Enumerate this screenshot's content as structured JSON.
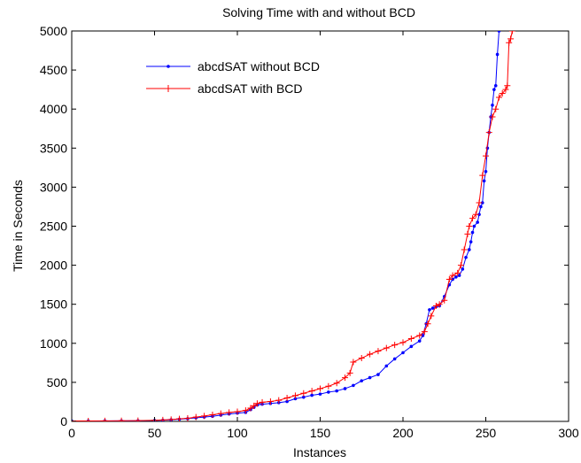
{
  "chart_data": {
    "type": "line",
    "title": "Solving Time with and without BCD",
    "xlabel": "Instances",
    "ylabel": "Time in Seconds",
    "xlim": [
      0,
      300
    ],
    "ylim": [
      0,
      5000
    ],
    "xticks": [
      0,
      50,
      100,
      150,
      200,
      250,
      300
    ],
    "yticks": [
      0,
      500,
      1000,
      1500,
      2000,
      2500,
      3000,
      3500,
      4000,
      4500,
      5000
    ],
    "grid": false,
    "legend_position": "top-left",
    "series": [
      {
        "name": "abcdSAT without BCD",
        "color": "#0000ff",
        "marker": "dot",
        "points": [
          [
            0,
            5
          ],
          [
            10,
            5
          ],
          [
            20,
            6
          ],
          [
            30,
            7
          ],
          [
            40,
            8
          ],
          [
            50,
            12
          ],
          [
            55,
            15
          ],
          [
            60,
            20
          ],
          [
            65,
            28
          ],
          [
            70,
            35
          ],
          [
            75,
            45
          ],
          [
            80,
            55
          ],
          [
            85,
            65
          ],
          [
            90,
            80
          ],
          [
            95,
            95
          ],
          [
            100,
            105
          ],
          [
            105,
            115
          ],
          [
            108,
            150
          ],
          [
            110,
            180
          ],
          [
            112,
            210
          ],
          [
            115,
            220
          ],
          [
            120,
            230
          ],
          [
            125,
            240
          ],
          [
            130,
            255
          ],
          [
            135,
            290
          ],
          [
            140,
            310
          ],
          [
            145,
            335
          ],
          [
            150,
            350
          ],
          [
            155,
            375
          ],
          [
            160,
            390
          ],
          [
            165,
            420
          ],
          [
            170,
            460
          ],
          [
            175,
            520
          ],
          [
            180,
            560
          ],
          [
            185,
            600
          ],
          [
            190,
            710
          ],
          [
            195,
            800
          ],
          [
            200,
            880
          ],
          [
            205,
            960
          ],
          [
            210,
            1030
          ],
          [
            212,
            1100
          ],
          [
            214,
            1250
          ],
          [
            216,
            1430
          ],
          [
            218,
            1450
          ],
          [
            220,
            1470
          ],
          [
            222,
            1480
          ],
          [
            225,
            1600
          ],
          [
            228,
            1750
          ],
          [
            230,
            1820
          ],
          [
            232,
            1850
          ],
          [
            234,
            1870
          ],
          [
            236,
            1950
          ],
          [
            238,
            2100
          ],
          [
            240,
            2200
          ],
          [
            241,
            2300
          ],
          [
            242,
            2420
          ],
          [
            243,
            2500
          ],
          [
            245,
            2550
          ],
          [
            246,
            2650
          ],
          [
            247,
            2750
          ],
          [
            248,
            2800
          ],
          [
            249,
            3080
          ],
          [
            250,
            3200
          ],
          [
            251,
            3500
          ],
          [
            252,
            3700
          ],
          [
            253,
            3900
          ],
          [
            254,
            4050
          ],
          [
            255,
            4250
          ],
          [
            256,
            4300
          ],
          [
            257,
            4700
          ],
          [
            258,
            5000
          ]
        ]
      },
      {
        "name": "abcdSAT with BCD",
        "color": "#ff0000",
        "marker": "plus",
        "points": [
          [
            0,
            5
          ],
          [
            10,
            6
          ],
          [
            20,
            7
          ],
          [
            30,
            8
          ],
          [
            40,
            10
          ],
          [
            50,
            14
          ],
          [
            55,
            18
          ],
          [
            60,
            24
          ],
          [
            65,
            32
          ],
          [
            70,
            40
          ],
          [
            75,
            55
          ],
          [
            80,
            70
          ],
          [
            85,
            85
          ],
          [
            90,
            100
          ],
          [
            95,
            115
          ],
          [
            100,
            125
          ],
          [
            105,
            140
          ],
          [
            108,
            170
          ],
          [
            110,
            200
          ],
          [
            112,
            230
          ],
          [
            115,
            245
          ],
          [
            120,
            255
          ],
          [
            125,
            270
          ],
          [
            130,
            300
          ],
          [
            135,
            330
          ],
          [
            140,
            360
          ],
          [
            145,
            390
          ],
          [
            150,
            420
          ],
          [
            155,
            450
          ],
          [
            160,
            490
          ],
          [
            165,
            560
          ],
          [
            168,
            620
          ],
          [
            170,
            760
          ],
          [
            175,
            810
          ],
          [
            180,
            860
          ],
          [
            185,
            900
          ],
          [
            190,
            940
          ],
          [
            195,
            980
          ],
          [
            200,
            1010
          ],
          [
            205,
            1060
          ],
          [
            210,
            1100
          ],
          [
            213,
            1150
          ],
          [
            215,
            1250
          ],
          [
            217,
            1350
          ],
          [
            220,
            1480
          ],
          [
            222,
            1500
          ],
          [
            225,
            1550
          ],
          [
            228,
            1820
          ],
          [
            230,
            1870
          ],
          [
            233,
            1900
          ],
          [
            235,
            2000
          ],
          [
            237,
            2200
          ],
          [
            239,
            2400
          ],
          [
            240,
            2500
          ],
          [
            242,
            2600
          ],
          [
            244,
            2650
          ],
          [
            246,
            2800
          ],
          [
            248,
            3150
          ],
          [
            250,
            3400
          ],
          [
            252,
            3700
          ],
          [
            254,
            3900
          ],
          [
            256,
            4000
          ],
          [
            258,
            4150
          ],
          [
            260,
            4200
          ],
          [
            262,
            4250
          ],
          [
            263,
            4300
          ],
          [
            264,
            4850
          ],
          [
            265,
            4900
          ],
          [
            266,
            5000
          ]
        ]
      }
    ]
  }
}
